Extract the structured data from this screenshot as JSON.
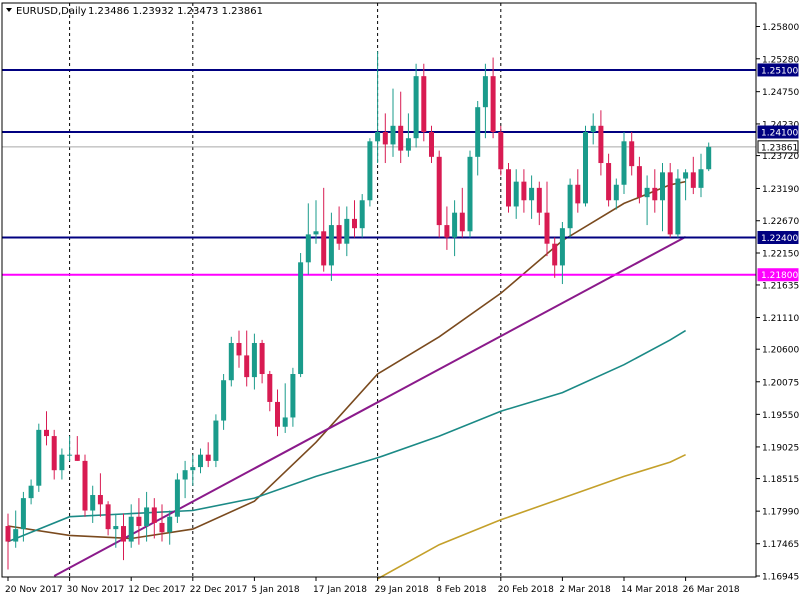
{
  "header": {
    "symbol": "EURUSD,Daily",
    "ohlc": "1.23486 1.23932 1.23473 1.23861"
  },
  "colors": {
    "bull": "#1a9b8b",
    "bear": "#d81b52",
    "grid": "#000000",
    "hline": "#000080",
    "hline_magenta": "#ff00ff",
    "ma_brown": "#7a4a1e",
    "ma_teal": "#1b8a86",
    "ma_gold": "#c4a02a",
    "trendline": "#8b1a8b",
    "current_price_line": "#a9a9a9"
  },
  "chart_data": {
    "type": "candlestick",
    "title": "EURUSD,Daily",
    "ylim": [
      1.16945,
      1.2605
    ],
    "y_ticks": [
      "1.25800",
      "1.25280",
      "1.24750",
      "1.24230",
      "1.23720",
      "1.23190",
      "1.22670",
      "1.22150",
      "1.21635",
      "1.21110",
      "1.20600",
      "1.20075",
      "1.19550",
      "1.19025",
      "1.18515",
      "1.17990",
      "1.17465",
      "1.16945"
    ],
    "x_ticks": [
      "20 Nov 2017",
      "30 Nov 2017",
      "12 Dec 2017",
      "22 Dec 2017",
      "5 Jan 2018",
      "17 Jan 2018",
      "29 Jan 2018",
      "8 Feb 2018",
      "20 Feb 2018",
      "2 Mar 2018",
      "14 Mar 2018",
      "26 Mar 2018"
    ],
    "x_tick_bar_index": [
      0,
      8,
      16,
      24,
      32,
      40,
      48,
      56,
      64,
      72,
      80,
      88
    ],
    "grid": "vertical dashed at 30 Nov 2017, 22 Dec 2017, 29 Jan 2018, 20 Feb 2018",
    "grid_bar_index": [
      8,
      24,
      48,
      64
    ],
    "candles": [
      [
        1.1775,
        1.1795,
        1.1705,
        1.175
      ],
      [
        1.175,
        1.18,
        1.174,
        1.177
      ],
      [
        1.177,
        1.183,
        1.175,
        1.182
      ],
      [
        1.182,
        1.185,
        1.181,
        1.184
      ],
      [
        1.184,
        1.194,
        1.183,
        1.193
      ],
      [
        1.193,
        1.196,
        1.1905,
        1.192
      ],
      [
        1.192,
        1.193,
        1.185,
        1.1865
      ],
      [
        1.1865,
        1.19,
        1.185,
        1.189
      ],
      [
        1.189,
        1.192,
        1.188,
        1.189
      ],
      [
        1.189,
        1.192,
        1.188,
        1.188
      ],
      [
        1.188,
        1.189,
        1.179,
        1.18
      ],
      [
        1.18,
        1.184,
        1.178,
        1.1825
      ],
      [
        1.1825,
        1.186,
        1.179,
        1.181
      ],
      [
        1.181,
        1.1815,
        1.176,
        1.177
      ],
      [
        1.177,
        1.1795,
        1.174,
        1.1775
      ],
      [
        1.1775,
        1.1795,
        1.172,
        1.175
      ],
      [
        1.175,
        1.181,
        1.174,
        1.179
      ],
      [
        1.179,
        1.182,
        1.1745,
        1.1775
      ],
      [
        1.1775,
        1.183,
        1.175,
        1.1805
      ],
      [
        1.1805,
        1.182,
        1.1755,
        1.178
      ],
      [
        1.178,
        1.181,
        1.175,
        1.1765
      ],
      [
        1.1765,
        1.18,
        1.1745,
        1.179
      ],
      [
        1.179,
        1.186,
        1.178,
        1.185
      ],
      [
        1.185,
        1.188,
        1.182,
        1.1865
      ],
      [
        1.1865,
        1.189,
        1.184,
        1.187
      ],
      [
        1.187,
        1.19,
        1.186,
        1.189
      ],
      [
        1.189,
        1.191,
        1.187,
        1.188
      ],
      [
        1.188,
        1.1955,
        1.187,
        1.1945
      ],
      [
        1.1945,
        1.202,
        1.193,
        1.201
      ],
      [
        1.201,
        1.208,
        1.2,
        1.207
      ],
      [
        1.207,
        1.209,
        1.203,
        1.205
      ],
      [
        1.205,
        1.209,
        1.2,
        1.2015
      ],
      [
        1.2015,
        1.2085,
        1.1995,
        1.207
      ],
      [
        1.207,
        1.2075,
        1.2005,
        1.202
      ],
      [
        1.202,
        1.2025,
        1.196,
        1.1975
      ],
      [
        1.1975,
        1.1995,
        1.192,
        1.1935
      ],
      [
        1.1935,
        1.2005,
        1.1925,
        1.195
      ],
      [
        1.195,
        1.203,
        1.1935,
        1.202
      ],
      [
        1.202,
        1.2215,
        1.2015,
        1.22
      ],
      [
        1.22,
        1.2295,
        1.218,
        1.2245
      ],
      [
        1.2245,
        1.23,
        1.223,
        1.225
      ],
      [
        1.225,
        1.232,
        1.2185,
        1.2195
      ],
      [
        1.2195,
        1.228,
        1.217,
        1.226
      ],
      [
        1.226,
        1.229,
        1.222,
        1.223
      ],
      [
        1.223,
        1.229,
        1.221,
        1.227
      ],
      [
        1.227,
        1.23,
        1.224,
        1.2255
      ],
      [
        1.2255,
        1.231,
        1.224,
        1.23
      ],
      [
        1.23,
        1.24,
        1.229,
        1.2395
      ],
      [
        1.2395,
        1.254,
        1.236,
        1.241
      ],
      [
        1.241,
        1.244,
        1.236,
        1.239
      ],
      [
        1.239,
        1.248,
        1.237,
        1.242
      ],
      [
        1.242,
        1.2475,
        1.236,
        1.238
      ],
      [
        1.238,
        1.244,
        1.237,
        1.24
      ],
      [
        1.24,
        1.252,
        1.2385,
        1.25
      ],
      [
        1.25,
        1.252,
        1.2395,
        1.241
      ],
      [
        1.241,
        1.242,
        1.236,
        1.237
      ],
      [
        1.237,
        1.238,
        1.224,
        1.226
      ],
      [
        1.226,
        1.229,
        1.222,
        1.224
      ],
      [
        1.224,
        1.23,
        1.221,
        1.228
      ],
      [
        1.228,
        1.232,
        1.224,
        1.225
      ],
      [
        1.225,
        1.238,
        1.224,
        1.237
      ],
      [
        1.237,
        1.246,
        1.234,
        1.245
      ],
      [
        1.245,
        1.252,
        1.24,
        1.25
      ],
      [
        1.25,
        1.253,
        1.24,
        1.241
      ],
      [
        1.241,
        1.242,
        1.234,
        1.235
      ],
      [
        1.235,
        1.236,
        1.228,
        1.229
      ],
      [
        1.229,
        1.235,
        1.227,
        1.233
      ],
      [
        1.233,
        1.235,
        1.228,
        1.23
      ],
      [
        1.23,
        1.234,
        1.227,
        1.232
      ],
      [
        1.232,
        1.233,
        1.226,
        1.228
      ],
      [
        1.228,
        1.233,
        1.221,
        1.223
      ],
      [
        1.223,
        1.224,
        1.2175,
        1.2195
      ],
      [
        1.2195,
        1.2265,
        1.2165,
        1.2255
      ],
      [
        1.2255,
        1.2335,
        1.224,
        1.2325
      ],
      [
        1.2325,
        1.235,
        1.228,
        1.2295
      ],
      [
        1.2295,
        1.242,
        1.229,
        1.241
      ],
      [
        1.241,
        1.244,
        1.239,
        1.242
      ],
      [
        1.242,
        1.2445,
        1.234,
        1.236
      ],
      [
        1.236,
        1.2375,
        1.229,
        1.23
      ],
      [
        1.23,
        1.2335,
        1.2285,
        1.2325
      ],
      [
        1.2325,
        1.241,
        1.231,
        1.2395
      ],
      [
        1.2395,
        1.241,
        1.234,
        1.2355
      ],
      [
        1.2355,
        1.237,
        1.2295,
        1.2305
      ],
      [
        1.2305,
        1.234,
        1.226,
        1.232
      ],
      [
        1.232,
        1.235,
        1.228,
        1.23
      ],
      [
        1.23,
        1.236,
        1.225,
        1.2345
      ],
      [
        1.2345,
        1.236,
        1.224,
        1.2245
      ],
      [
        1.2245,
        1.235,
        1.224,
        1.2335
      ],
      [
        1.2335,
        1.235,
        1.23,
        1.2345
      ],
      [
        1.2345,
        1.237,
        1.231,
        1.232
      ],
      [
        1.232,
        1.2375,
        1.2305,
        1.235
      ],
      [
        1.235,
        1.2393,
        1.2347,
        1.2386
      ]
    ],
    "hlines": [
      {
        "label": "1.25100",
        "value": 1.251,
        "color": "#000080"
      },
      {
        "label": "1.24100",
        "value": 1.241,
        "color": "#000080"
      },
      {
        "label": "1.22400",
        "value": 1.224,
        "color": "#000080"
      },
      {
        "label": "1.21800",
        "value": 1.218,
        "color": "#ff00ff"
      }
    ],
    "current_price": {
      "label": "1.23861",
      "value": 1.23861
    },
    "moving_averages": [
      {
        "color": "#7a4a1e",
        "points": [
          [
            0,
            1.1775
          ],
          [
            8,
            1.176
          ],
          [
            16,
            1.1755
          ],
          [
            24,
            1.177
          ],
          [
            32,
            1.1815
          ],
          [
            40,
            1.191
          ],
          [
            48,
            1.202
          ],
          [
            56,
            1.208
          ],
          [
            64,
            1.215
          ],
          [
            72,
            1.2235
          ],
          [
            80,
            1.2295
          ],
          [
            86,
            1.2325
          ],
          [
            88,
            1.233
          ]
        ]
      },
      {
        "color": "#1b8a86",
        "points": [
          [
            0,
            1.175
          ],
          [
            8,
            1.179
          ],
          [
            16,
            1.1795
          ],
          [
            24,
            1.18
          ],
          [
            32,
            1.182
          ],
          [
            40,
            1.1855
          ],
          [
            48,
            1.1885
          ],
          [
            56,
            1.192
          ],
          [
            64,
            1.196
          ],
          [
            72,
            1.199
          ],
          [
            80,
            1.2035
          ],
          [
            86,
            1.2075
          ],
          [
            88,
            1.209
          ]
        ]
      },
      {
        "color": "#c4a02a",
        "points": [
          [
            48,
            1.169
          ],
          [
            56,
            1.1745
          ],
          [
            64,
            1.1785
          ],
          [
            72,
            1.182
          ],
          [
            80,
            1.1855
          ],
          [
            86,
            1.1878
          ],
          [
            88,
            1.189
          ]
        ]
      }
    ],
    "trendline": {
      "color": "#8b1a8b",
      "points": [
        [
          6,
          1.16945
        ],
        [
          88,
          1.2241
        ]
      ]
    }
  }
}
